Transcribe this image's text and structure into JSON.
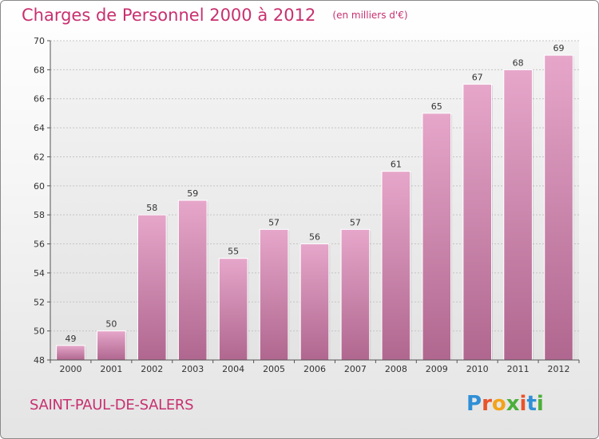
{
  "header": {
    "title": "Charges de Personnel 2000 à 2012",
    "subtitle": "(en milliers d'€)"
  },
  "footer": {
    "commune": "SAINT-PAUL-DE-SALERS",
    "logo_text": "Proxiti"
  },
  "colors": {
    "accent": "#c8306f",
    "bar_top": "#e6a6ca",
    "bar_bottom": "#b0678f",
    "logo_letters": [
      "#2f8fd6",
      "#e8532a",
      "#f2a31b",
      "#4caf3a",
      "#e8532a",
      "#2f8fd6",
      "#4caf3a"
    ]
  },
  "chart_data": {
    "type": "bar",
    "title": "Charges de Personnel 2000 à 2012",
    "subtitle": "(en milliers d'€)",
    "categories": [
      "2000",
      "2001",
      "2002",
      "2003",
      "2004",
      "2005",
      "2006",
      "2007",
      "2008",
      "2009",
      "2010",
      "2011",
      "2012"
    ],
    "values": [
      49,
      50,
      58,
      59,
      55,
      57,
      56,
      57,
      61,
      65,
      67,
      68,
      69
    ],
    "ylim": [
      48,
      70
    ],
    "yticks": [
      48,
      50,
      52,
      54,
      56,
      58,
      60,
      62,
      64,
      66,
      68,
      70
    ],
    "grid": true,
    "legend": "none"
  }
}
